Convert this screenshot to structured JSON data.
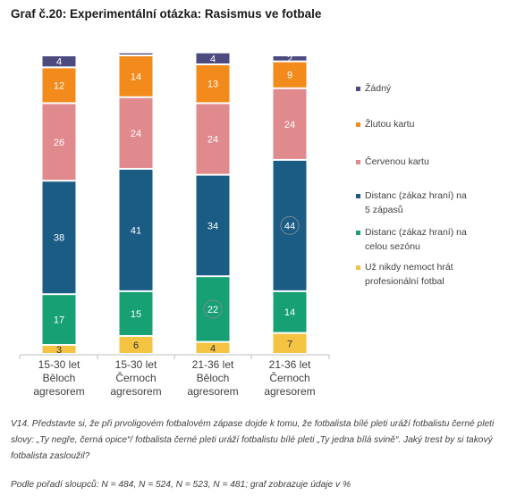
{
  "title": "Graf č.20: Experimentální otázka: Rasismus ve fotbale",
  "note": "V14. Představte si, že při prvoligovém fotbalovém zápase dojde k tomu, že fotbalista bílé pleti uráží fotbalistu černé pleti slovy: „Ty negře, černá opice“/ fotbalista černé pleti uráží fotbalistu bílé pleti „Ty jedna bílá svině“. Jaký trest by si takový fotbalista zasloužil?",
  "source": "Podle pořadí sloupců: N = 484, N = 524, N = 523, N = 481; graf zobrazuje údaje v %",
  "chart_data": {
    "type": "bar",
    "stacked": true,
    "categories": [
      [
        "15-30 let",
        "Běloch",
        "agresorem"
      ],
      [
        "15-30 let",
        "Černoch",
        "agresorem"
      ],
      [
        "21-36 let",
        "Běloch",
        "agresorem"
      ],
      [
        "21-36 let",
        "Černoch",
        "agresorem"
      ]
    ],
    "series": [
      {
        "name": "Už nikdy nemoct hrát profesionální fotbal",
        "legend_lines": [
          "Už nikdy nemoct hrát",
          "profesionální fotbal"
        ],
        "color": "#f5c342",
        "label_color": "#333333",
        "values": [
          3,
          6,
          4,
          7
        ]
      },
      {
        "name": "Distanc (zákaz hraní) na celou sezónu",
        "legend_lines": [
          "Distanc (zákaz hraní) na",
          "celou sezónu"
        ],
        "color": "#17a073",
        "label_color": "#ffffff",
        "values": [
          17,
          15,
          22,
          14
        ]
      },
      {
        "name": "Distanc (zákaz hraní) na 5 zápasů",
        "legend_lines": [
          "Distanc (zákaz hraní) na",
          "5 zápasů"
        ],
        "color": "#1b5c85",
        "label_color": "#ffffff",
        "values": [
          38,
          41,
          34,
          44
        ]
      },
      {
        "name": "Červenou kartu",
        "legend_lines": [
          "Červenou kartu"
        ],
        "color": "#e08a8e",
        "label_color": "#ffffff",
        "values": [
          26,
          24,
          24,
          24
        ]
      },
      {
        "name": "Žlutou kartu",
        "legend_lines": [
          "Žlutou kartu"
        ],
        "color": "#f28a1c",
        "label_color": "#ffffff",
        "values": [
          12,
          14,
          13,
          9
        ]
      },
      {
        "name": "Žádný",
        "legend_lines": [
          "Žádný"
        ],
        "color": "#4d4a7f",
        "label_color": "#ffffff",
        "values": [
          4,
          1,
          4,
          2
        ]
      }
    ],
    "ylim": [
      0,
      100
    ],
    "legend_position": "right",
    "legend_order": [
      "Žádný",
      "Žlutou kartu",
      "Červenou kartu",
      "Distanc (zákaz hraní) na 5 zápasů",
      "Distanc (zákaz hraní) na celou sezónu",
      "Už nikdy nemoct hrát profesionální fotbal"
    ],
    "circled_values": [
      {
        "category_index": 2,
        "series": "Distanc (zákaz hraní) na celou sezónu"
      },
      {
        "category_index": 3,
        "series": "Distanc (zákaz hraní) na 5 zápasů"
      }
    ],
    "hidden_value_labels": [
      {
        "category_index": 1,
        "series": "Žádný"
      }
    ]
  }
}
